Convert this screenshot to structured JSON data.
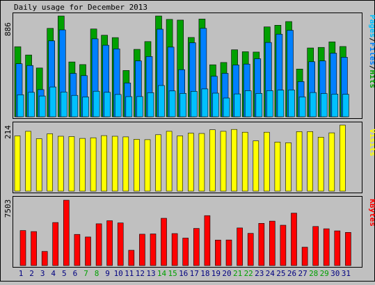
{
  "title": "Daily usage for December 2013",
  "colors": {
    "background": "#c0c0c0",
    "hits": "#00a000",
    "files": "#0080ff",
    "pages": "#00c0ff",
    "visits": "#ffff00",
    "kbytes": "#ff0000",
    "weekend_label": "#00a000",
    "weekday_label": "#000080"
  },
  "chart_data": [
    {
      "type": "bar",
      "ylabel_max": "886",
      "legend": {
        "pages": "Pages",
        "sep1": "/",
        "files": "Files",
        "sep2": "/",
        "hits": "Hits"
      },
      "ymax": 886,
      "categories": [
        "1",
        "2",
        "3",
        "4",
        "5",
        "6",
        "7",
        "8",
        "9",
        "10",
        "11",
        "12",
        "13",
        "14",
        "15",
        "16",
        "17",
        "18",
        "19",
        "20",
        "21",
        "22",
        "23",
        "24",
        "25",
        "26",
        "27",
        "28",
        "29",
        "30",
        "31"
      ],
      "series": [
        {
          "name": "Hits",
          "values": [
            616,
            543,
            429,
            777,
            886,
            482,
            459,
            772,
            717,
            696,
            407,
            593,
            661,
            886,
            856,
            850,
            697,
            859,
            457,
            477,
            589,
            572,
            569,
            790,
            805,
            837,
            420,
            605,
            610,
            659,
            618
          ]
        },
        {
          "name": "Files",
          "values": [
            466,
            451,
            239,
            667,
            764,
            381,
            362,
            685,
            629,
            597,
            297,
            491,
            530,
            770,
            612,
            414,
            651,
            777,
            356,
            382,
            455,
            463,
            510,
            653,
            726,
            760,
            309,
            484,
            491,
            559,
            523
          ]
        },
        {
          "name": "Pages",
          "values": [
            194,
            215,
            183,
            262,
            218,
            188,
            174,
            225,
            215,
            196,
            177,
            178,
            212,
            275,
            227,
            206,
            224,
            245,
            208,
            165,
            201,
            229,
            206,
            230,
            234,
            236,
            175,
            213,
            205,
            199,
            198
          ]
        }
      ]
    },
    {
      "type": "bar",
      "ylabel_max": "214",
      "legend": {
        "visits": "Visits"
      },
      "ymax": 214,
      "categories": [
        "1",
        "2",
        "3",
        "4",
        "5",
        "6",
        "7",
        "8",
        "9",
        "10",
        "11",
        "12",
        "13",
        "14",
        "15",
        "16",
        "17",
        "18",
        "19",
        "20",
        "21",
        "22",
        "23",
        "24",
        "25",
        "26",
        "27",
        "28",
        "29",
        "30",
        "31"
      ],
      "series": [
        {
          "name": "Visits",
          "values": [
            179,
            194,
            170,
            186,
            178,
            177,
            171,
            173,
            180,
            178,
            176,
            168,
            167,
            183,
            194,
            179,
            188,
            187,
            199,
            194,
            200,
            191,
            163,
            191,
            159,
            157,
            193,
            193,
            175,
            189,
            214
          ]
        }
      ]
    },
    {
      "type": "bar",
      "ylabel_max": "7503",
      "legend": {
        "kbytes": "KBytes"
      },
      "ymax": 7503,
      "categories": [
        "1",
        "2",
        "3",
        "4",
        "5",
        "6",
        "7",
        "8",
        "9",
        "10",
        "11",
        "12",
        "13",
        "14",
        "15",
        "16",
        "17",
        "18",
        "19",
        "20",
        "21",
        "22",
        "23",
        "24",
        "25",
        "26",
        "27",
        "28",
        "29",
        "30",
        "31"
      ],
      "x_label_colors": [
        "weekday",
        "weekday",
        "weekday",
        "weekday",
        "weekday",
        "weekday",
        "weekend",
        "weekend",
        "weekday",
        "weekday",
        "weekday",
        "weekday",
        "weekday",
        "weekend",
        "weekend",
        "weekday",
        "weekday",
        "weekday",
        "weekday",
        "weekday",
        "weekend",
        "weekend",
        "weekday",
        "weekday",
        "weekday",
        "weekday",
        "weekday",
        "weekend",
        "weekend",
        "weekday",
        "weekday"
      ],
      "series": [
        {
          "name": "KBytes",
          "values": [
            4021,
            3906,
            1624,
            4938,
            7503,
            3579,
            3279,
            4800,
            5151,
            4889,
            1753,
            3596,
            3630,
            5429,
            3673,
            3151,
            4265,
            5730,
            2928,
            2938,
            4322,
            3698,
            4848,
            5103,
            4632,
            6019,
            2105,
            4482,
            4226,
            3982,
            3811
          ]
        }
      ]
    }
  ]
}
